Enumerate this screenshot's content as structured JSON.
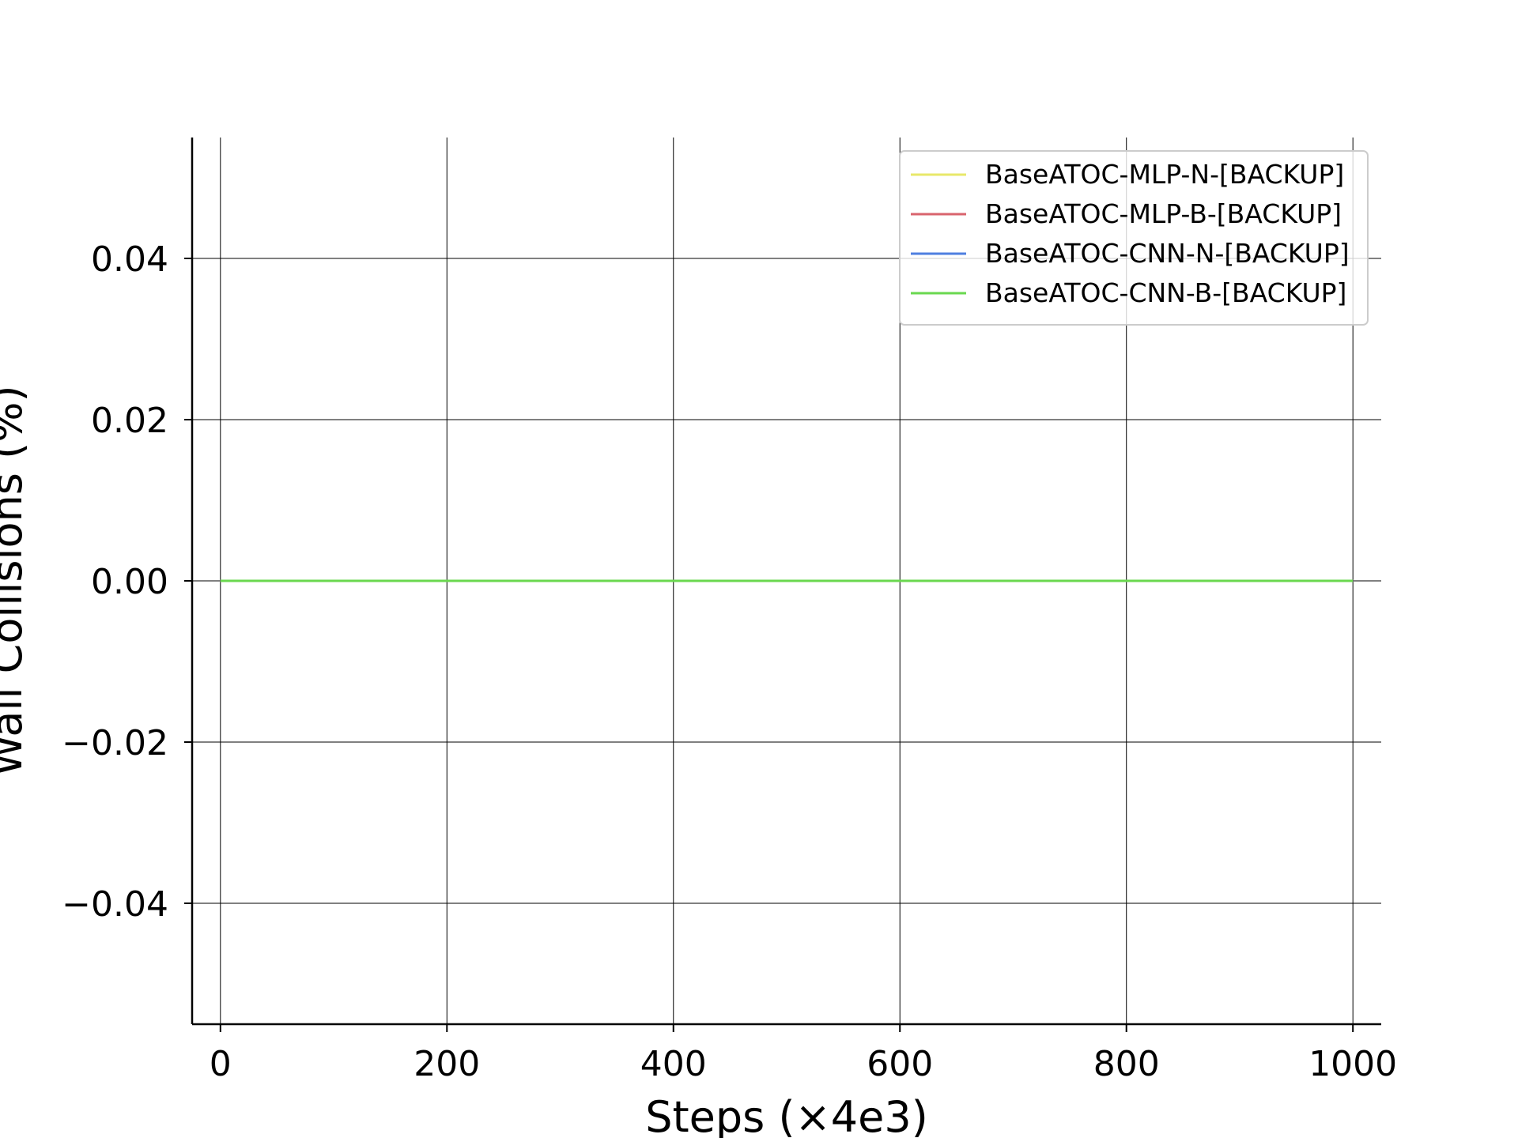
{
  "chart_data": {
    "type": "line",
    "title": "",
    "xlabel": "Steps (×4e3)",
    "ylabel": "Wall Collisions (%)",
    "xlim": [
      -25,
      1025
    ],
    "ylim": [
      -0.055,
      0.055
    ],
    "xticks": [
      0,
      200,
      400,
      600,
      800,
      1000
    ],
    "xtick_labels": [
      "0",
      "200",
      "400",
      "600",
      "800",
      "1000"
    ],
    "yticks": [
      -0.04,
      -0.02,
      0.0,
      0.02,
      0.04
    ],
    "ytick_labels": [
      "−0.04",
      "−0.02",
      "0.00",
      "0.02",
      "0.04"
    ],
    "grid": true,
    "legend_position": "top-right",
    "series": [
      {
        "name": "BaseATOC-MLP-N-[BACKUP]",
        "color": "#e8e86a",
        "x": [
          0,
          1000
        ],
        "y": [
          0,
          0
        ]
      },
      {
        "name": "BaseATOC-MLP-B-[BACKUP]",
        "color": "#d9646e",
        "x": [
          0,
          1000
        ],
        "y": [
          0,
          0
        ]
      },
      {
        "name": "BaseATOC-CNN-N-[BACKUP]",
        "color": "#4f7fe0",
        "x": [
          0,
          1000
        ],
        "y": [
          0,
          0
        ]
      },
      {
        "name": "BaseATOC-CNN-B-[BACKUP]",
        "color": "#6ad84f",
        "x": [
          0,
          1000
        ],
        "y": [
          0,
          0
        ]
      }
    ]
  }
}
